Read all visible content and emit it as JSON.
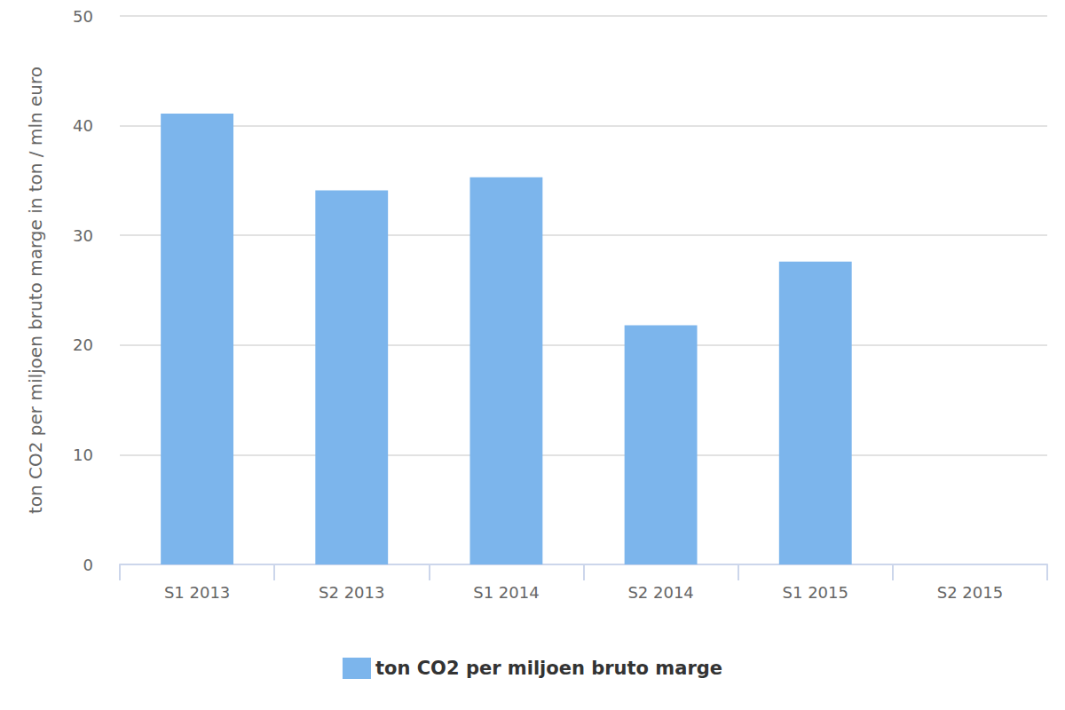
{
  "chart_data": {
    "type": "bar",
    "y_label": "ton CO2 per miljoen bruto marge in ton / mln euro",
    "categories": [
      "S1 2013",
      "S2 2013",
      "S1 2014",
      "S2 2014",
      "S1 2015",
      "S2 2015"
    ],
    "series": [
      {
        "name": "ton CO2 per miljoen bruto marge",
        "color": "#7cb5ec",
        "values": [
          41.1,
          34.1,
          35.3,
          21.8,
          27.6,
          null
        ]
      }
    ],
    "ylim": [
      0,
      50
    ],
    "yticks": [
      0,
      10,
      20,
      30,
      40,
      50
    ],
    "grid": true,
    "legend": "bottom"
  }
}
